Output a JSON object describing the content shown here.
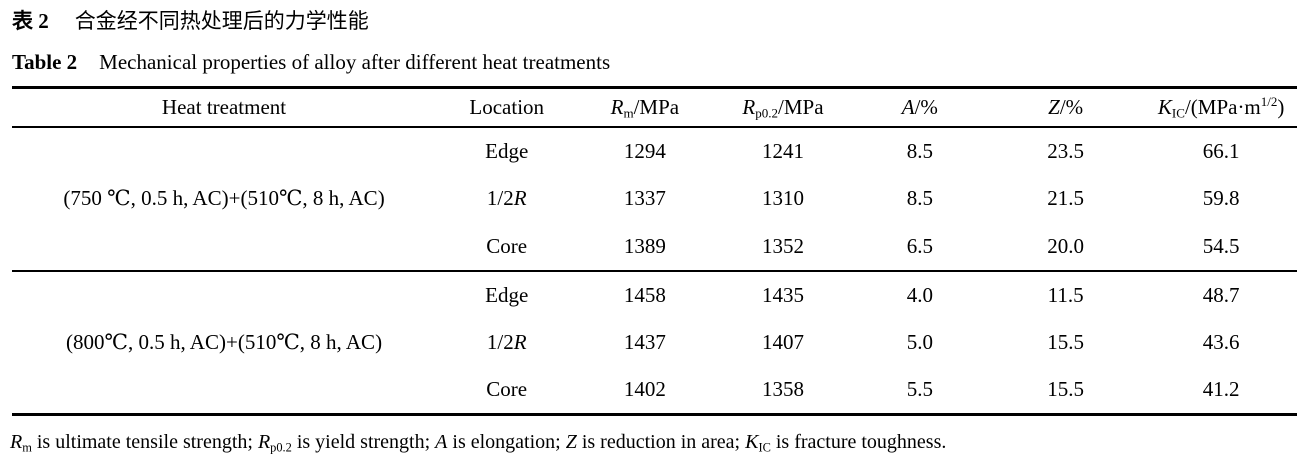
{
  "page": {
    "background_color": "#ffffff",
    "text_color": "#000000",
    "rule_color": "#000000"
  },
  "caption": {
    "zh_label": "表 2",
    "zh_title": "合金经不同热处理后的力学性能",
    "en_label": "Table 2",
    "en_title": "Mechanical properties of alloy after different heat treatments"
  },
  "table": {
    "headers": [
      "Heat treatment",
      "Location",
      "*R*_{m}/MPa",
      "*R*_{p0.2}/MPa",
      "*A*/%",
      "*Z*/%",
      "*K*_{IC}/(MPa·m^{1/2})"
    ],
    "groups": [
      {
        "treatment": "(750 ℃, 0.5 h, AC)+(510℃, 8 h, AC)",
        "rows": [
          {
            "location": "Edge",
            "rm": "1294",
            "rp02": "1241",
            "a": "8.5",
            "z": "23.5",
            "kic": "66.1"
          },
          {
            "location": "1/2*R*",
            "rm": "1337",
            "rp02": "1310",
            "a": "8.5",
            "z": "21.5",
            "kic": "59.8"
          },
          {
            "location": "Core",
            "rm": "1389",
            "rp02": "1352",
            "a": "6.5",
            "z": "20.0",
            "kic": "54.5"
          }
        ]
      },
      {
        "treatment": "(800℃, 0.5 h, AC)+(510℃, 8 h, AC)",
        "rows": [
          {
            "location": "Edge",
            "rm": "1458",
            "rp02": "1435",
            "a": "4.0",
            "z": "11.5",
            "kic": "48.7"
          },
          {
            "location": "1/2*R*",
            "rm": "1437",
            "rp02": "1407",
            "a": "5.0",
            "z": "15.5",
            "kic": "43.6"
          },
          {
            "location": "Core",
            "rm": "1402",
            "rp02": "1358",
            "a": "5.5",
            "z": "15.5",
            "kic": "41.2"
          }
        ]
      }
    ]
  },
  "footnote": {
    "text": "*R*_{m} is ultimate tensile strength; *R*_{p0.2} is yield strength; *A* is elongation; *Z* is reduction in area; *K*_{IC} is fracture toughness."
  },
  "chart_data": {
    "type": "table",
    "title": "Mechanical properties of alloy after different heat treatments",
    "columns": [
      "Heat treatment",
      "Location",
      "Rm/MPa",
      "Rp0.2/MPa",
      "A/%",
      "Z/%",
      "KIC/(MPa·m^1/2)"
    ],
    "rows": [
      [
        "(750 ℃, 0.5 h, AC)+(510℃, 8 h, AC)",
        "Edge",
        1294,
        1241,
        8.5,
        23.5,
        66.1
      ],
      [
        "(750 ℃, 0.5 h, AC)+(510℃, 8 h, AC)",
        "1/2R",
        1337,
        1310,
        8.5,
        21.5,
        59.8
      ],
      [
        "(750 ℃, 0.5 h, AC)+(510℃, 8 h, AC)",
        "Core",
        1389,
        1352,
        6.5,
        20.0,
        54.5
      ],
      [
        "(800℃, 0.5 h, AC)+(510℃, 8 h, AC)",
        "Edge",
        1458,
        1435,
        4.0,
        11.5,
        48.7
      ],
      [
        "(800℃, 0.5 h, AC)+(510℃, 8 h, AC)",
        "1/2R",
        1437,
        1407,
        5.0,
        15.5,
        43.6
      ],
      [
        "(800℃, 0.5 h, AC)+(510℃, 8 h, AC)",
        "Core",
        1402,
        1358,
        5.5,
        15.5,
        41.2
      ]
    ]
  }
}
